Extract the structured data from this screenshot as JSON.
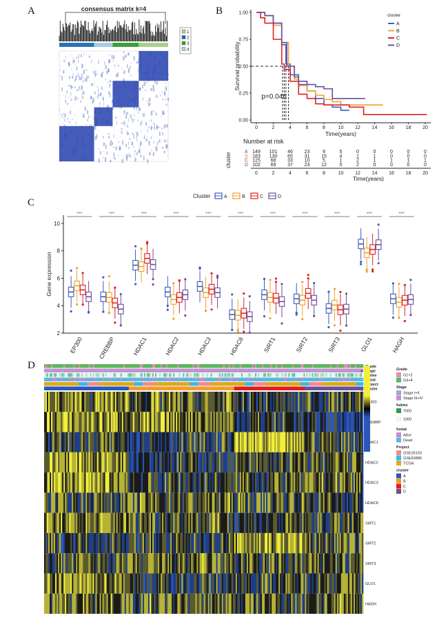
{
  "panels": {
    "a": "A",
    "b": "B",
    "c": "C",
    "d": "D"
  },
  "chart_data": [
    {
      "id": "consensus",
      "type": "heatmap",
      "title": "consensus matrix k=4",
      "legend": {
        "entries": [
          {
            "label": "1",
            "color": "#a6d28a"
          },
          {
            "label": "2",
            "color": "#2166ac"
          },
          {
            "label": "3",
            "color": "#33a02c"
          },
          {
            "label": "4",
            "color": "#a6cee3"
          }
        ],
        "placement": "right"
      },
      "column_groups": [
        {
          "cluster": "2",
          "color": "#2e72b5",
          "fraction": 0.32
        },
        {
          "cluster": "4",
          "color": "#a6cee3",
          "fraction": 0.17
        },
        {
          "cluster": "3",
          "color": "#39a03a",
          "fraction": 0.24
        },
        {
          "cluster": "1",
          "color": "#a6d28a",
          "fraction": 0.27
        }
      ],
      "cell_color": "#2b46b0"
    },
    {
      "id": "km",
      "type": "line",
      "xlabel": "Time(years)",
      "ylabel": "Survival probability",
      "xlim": [
        0,
        20
      ],
      "ylim": [
        0,
        1
      ],
      "xticks": [
        "0",
        "2",
        "4",
        "6",
        "8",
        "10",
        "12",
        "14",
        "16",
        "18",
        "20"
      ],
      "yticks": [
        "0.00",
        "0.25",
        "0.50",
        "0.75",
        "1.00"
      ],
      "pvalue": "p=0.046",
      "legend": {
        "title": "cluster",
        "placement": "top-right"
      },
      "series": [
        {
          "name": "A",
          "color": "#3b5bbd",
          "points": [
            [
              0,
              1
            ],
            [
              1,
              0.97
            ],
            [
              2,
              0.9
            ],
            [
              3,
              0.7
            ],
            [
              3.5,
              0.52
            ],
            [
              4,
              0.42
            ],
            [
              5,
              0.33
            ],
            [
              6,
              0.27
            ],
            [
              7,
              0.2
            ],
            [
              8,
              0.14
            ],
            [
              9,
              0.12
            ],
            [
              10,
              0.09
            ],
            [
              11,
              0.09
            ]
          ]
        },
        {
          "name": "B",
          "color": "#f0a030",
          "points": [
            [
              0,
              1
            ],
            [
              1,
              0.97
            ],
            [
              2,
              0.88
            ],
            [
              3,
              0.72
            ],
            [
              3.8,
              0.5
            ],
            [
              4.5,
              0.38
            ],
            [
              5,
              0.32
            ],
            [
              6,
              0.27
            ],
            [
              7,
              0.23
            ],
            [
              8,
              0.19
            ],
            [
              9,
              0.17
            ],
            [
              10,
              0.14
            ],
            [
              12,
              0.14
            ],
            [
              15,
              0.14
            ]
          ]
        },
        {
          "name": "C",
          "color": "#e02020",
          "points": [
            [
              0,
              1
            ],
            [
              0.5,
              0.95
            ],
            [
              1,
              0.9
            ],
            [
              2,
              0.75
            ],
            [
              3,
              0.52
            ],
            [
              3.3,
              0.47
            ],
            [
              4,
              0.36
            ],
            [
              5,
              0.24
            ],
            [
              6,
              0.2
            ],
            [
              7,
              0.15
            ],
            [
              8,
              0.14
            ],
            [
              10,
              0.14
            ],
            [
              11,
              0.12
            ],
            [
              12.6,
              0.12
            ],
            [
              12.7,
              0.05
            ],
            [
              20.2,
              0.05
            ]
          ]
        },
        {
          "name": "D",
          "color": "#6a4c9c",
          "points": [
            [
              0,
              1
            ],
            [
              1,
              0.97
            ],
            [
              2,
              0.9
            ],
            [
              3,
              0.72
            ],
            [
              3.6,
              0.5
            ],
            [
              4.5,
              0.4
            ],
            [
              5,
              0.36
            ],
            [
              6,
              0.33
            ],
            [
              7,
              0.31
            ],
            [
              8,
              0.29
            ],
            [
              9,
              0.2
            ],
            [
              11,
              0.2
            ],
            [
              12.9,
              0.2
            ]
          ]
        }
      ],
      "median_lines": [
        3.1,
        3.3,
        3.5,
        3.8
      ],
      "risk_table": {
        "title": "Number at risk",
        "ylabel": "cluster",
        "times": [
          "0",
          "2",
          "4",
          "6",
          "8",
          "10",
          "12",
          "14",
          "16",
          "18",
          "20"
        ],
        "rows": [
          {
            "name": "A",
            "color": "#3b5bbd",
            "values": [
              "149",
              "101",
              "46",
              "23",
              "9",
              "5",
              "0",
              "0",
              "0",
              "0",
              "0"
            ]
          },
          {
            "name": "B",
            "color": "#f0a030",
            "values": [
              "183",
              "130",
              "65",
              "31",
              "15",
              "4",
              "1",
              "1",
              "0",
              "0",
              "0"
            ]
          },
          {
            "name": "C",
            "color": "#e02020",
            "values": [
              "125",
              "68",
              "33",
              "10",
              "5",
              "1",
              "2",
              "1",
              "1",
              "1",
              "1"
            ]
          },
          {
            "name": "D",
            "color": "#6a4c9c",
            "values": [
              "102",
              "69",
              "37",
              "23",
              "12",
              "5",
              "2",
              "0",
              "0",
              "0",
              "0"
            ]
          }
        ]
      }
    },
    {
      "id": "boxplot",
      "type": "bar",
      "subtype": "boxplot",
      "ylabel": "Gene expression",
      "ylim": [
        2,
        10.6
      ],
      "yticks": [
        "2",
        "4",
        "6",
        "8",
        "10"
      ],
      "legend": {
        "title": "Cluster",
        "placement": "top",
        "entries": [
          "A",
          "B",
          "C",
          "D"
        ]
      },
      "series_colors": {
        "A": "#3b5bbd",
        "B": "#f0a030",
        "C": "#e02020",
        "D": "#6a4c9c"
      },
      "significance": "***",
      "categories": [
        "EP300",
        "CREBBP",
        "HDAC1",
        "HDAC2",
        "HDAC3",
        "HDAC8",
        "SIRT1",
        "SIRT2",
        "SIRT3",
        "GLO1",
        "HAGH"
      ],
      "series": [
        {
          "name": "A",
          "medians": [
            5.0,
            4.65,
            6.95,
            5.0,
            5.4,
            3.35,
            4.8,
            4.5,
            3.8,
            8.5,
            4.5
          ]
        },
        {
          "name": "B",
          "medians": [
            5.45,
            4.6,
            6.85,
            4.45,
            4.95,
            3.3,
            4.6,
            4.4,
            4.05,
            7.85,
            4.25
          ]
        },
        {
          "name": "C",
          "medians": [
            5.15,
            4.2,
            7.45,
            4.6,
            5.2,
            3.45,
            4.55,
            4.9,
            3.7,
            8.1,
            4.4
          ]
        },
        {
          "name": "D",
          "medians": [
            4.65,
            3.75,
            7.0,
            4.8,
            4.95,
            3.2,
            4.3,
            4.4,
            3.75,
            8.45,
            4.45
          ]
        }
      ],
      "box_halfwidth_iqr": 0.35
    },
    {
      "id": "expression_heatmap",
      "type": "heatmap",
      "rows": [
        "EP300",
        "CREBBP",
        "HDAC1",
        "HDAC2",
        "HDAC3",
        "HDAC8",
        "SIRT1",
        "SIRT2",
        "SIRT3",
        "GLO1",
        "HAGH"
      ],
      "annotation_rows": [
        "Grade",
        "Stage",
        "futime",
        "fustat",
        "Project",
        "cluster"
      ],
      "cluster_fractions": {
        "A": 0.265,
        "B": 0.33,
        "C": 0.22,
        "D": 0.185
      },
      "colorbar": {
        "ticks": [
          "4",
          "2",
          "0",
          "-2",
          "-4"
        ],
        "colors": [
          "#f2ee3a",
          "#000000",
          "#2a57b8"
        ]
      },
      "legends": [
        {
          "title": "Grade",
          "entries": [
            {
              "label": "G1+2",
              "color": "#e78ac3"
            },
            {
              "label": "G3+4",
              "color": "#5cb85c"
            }
          ]
        },
        {
          "title": "Stage",
          "entries": [
            {
              "label": "Stage I+II",
              "color": "#a6a6d8"
            },
            {
              "label": "Stage III+IV",
              "color": "#c58fd0"
            }
          ]
        },
        {
          "title": "futime",
          "entries": [
            {
              "label": "7000",
              "color": "#2e9a52"
            },
            {
              "label": "1000",
              "color": "#e8f6f0"
            }
          ]
        },
        {
          "title": "fustat",
          "entries": [
            {
              "label": "Alive",
              "color": "#c58fd0"
            },
            {
              "label": "Dead",
              "color": "#5fb6d9"
            }
          ]
        },
        {
          "title": "Project",
          "entries": [
            {
              "label": "GSE26193",
              "color": "#f08c8c"
            },
            {
              "label": "GSE63885",
              "color": "#3bb8e8"
            },
            {
              "label": "TCGA",
              "color": "#d9a920"
            }
          ]
        },
        {
          "title": "cluster",
          "entries": [
            {
              "label": "A",
              "color": "#2a57b8"
            },
            {
              "label": "B",
              "color": "#f39c2a"
            },
            {
              "label": "C",
              "color": "#e21b1b"
            },
            {
              "label": "D",
              "color": "#6b4f9a"
            }
          ]
        }
      ]
    }
  ]
}
